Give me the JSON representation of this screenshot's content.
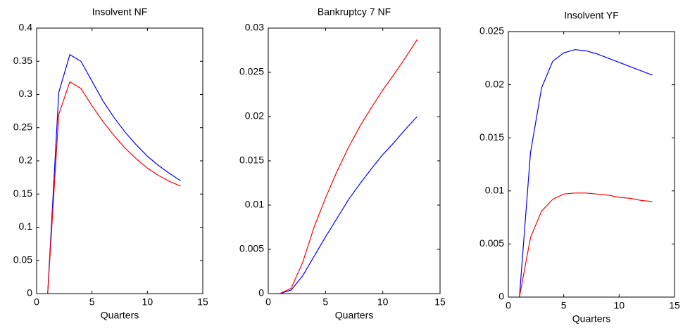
{
  "chart_data": [
    {
      "type": "line",
      "title": "Insolvent NF",
      "xlabel": "Quarters",
      "x": [
        1,
        2,
        3,
        4,
        5,
        6,
        7,
        8,
        9,
        10,
        11,
        12,
        13
      ],
      "series": [
        {
          "color": "#0000ff",
          "values": [
            0,
            0.303,
            0.36,
            0.35,
            0.32,
            0.29,
            0.265,
            0.243,
            0.224,
            0.207,
            0.193,
            0.181,
            0.17
          ]
        },
        {
          "color": "#ff0000",
          "values": [
            0,
            0.27,
            0.319,
            0.309,
            0.283,
            0.259,
            0.238,
            0.219,
            0.203,
            0.189,
            0.178,
            0.169,
            0.162
          ]
        }
      ],
      "xlim": [
        0,
        15
      ],
      "xticks": [
        0,
        5,
        10,
        15
      ],
      "ylim": [
        0,
        0.4
      ],
      "yticks": [
        0,
        0.05,
        0.1,
        0.15,
        0.2,
        0.25,
        0.3,
        0.35,
        0.4
      ],
      "grid": false
    },
    {
      "type": "line",
      "title": "Bankruptcy 7 NF",
      "xlabel": "Quarters",
      "x": [
        1,
        2,
        3,
        4,
        5,
        6,
        7,
        8,
        9,
        10,
        11,
        12,
        13
      ],
      "series": [
        {
          "color": "#0000ff",
          "values": [
            0,
            0.0004,
            0.002,
            0.0042,
            0.0064,
            0.0085,
            0.0106,
            0.0124,
            0.0141,
            0.0157,
            0.0171,
            0.0186,
            0.02
          ]
        },
        {
          "color": "#ff0000",
          "values": [
            0,
            0.0006,
            0.0035,
            0.0075,
            0.0108,
            0.0138,
            0.0165,
            0.0189,
            0.021,
            0.023,
            0.0248,
            0.0267,
            0.0287
          ]
        }
      ],
      "xlim": [
        0,
        15
      ],
      "xticks": [
        0,
        5,
        10,
        15
      ],
      "ylim": [
        0,
        0.03
      ],
      "yticks": [
        0,
        0.005,
        0.01,
        0.015,
        0.02,
        0.025,
        0.03
      ],
      "grid": false
    },
    {
      "type": "line",
      "title": "Insolvent YF",
      "xlabel": "Quarters",
      "x": [
        1,
        2,
        3,
        4,
        5,
        6,
        7,
        8,
        9,
        10,
        11,
        12,
        13
      ],
      "series": [
        {
          "color": "#0000ff",
          "values": [
            0,
            0.0136,
            0.0197,
            0.0222,
            0.023,
            0.0233,
            0.0232,
            0.0229,
            0.0225,
            0.0221,
            0.0217,
            0.0213,
            0.0209
          ]
        },
        {
          "color": "#ff0000",
          "values": [
            0,
            0.0056,
            0.0081,
            0.0092,
            0.0097,
            0.0098,
            0.0098,
            0.0097,
            0.0096,
            0.0094,
            0.0093,
            0.0091,
            0.009
          ]
        }
      ],
      "xlim": [
        0,
        15
      ],
      "xticks": [
        0,
        5,
        10,
        15
      ],
      "ylim": [
        0,
        0.025
      ],
      "yticks": [
        0,
        0.005,
        0.01,
        0.015,
        0.02,
        0.025
      ],
      "grid": false
    }
  ]
}
